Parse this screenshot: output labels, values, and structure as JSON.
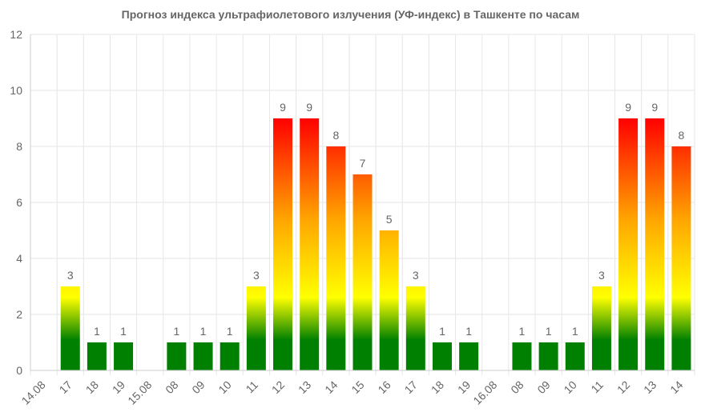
{
  "chart_data": {
    "type": "bar",
    "title": "Прогноз индекса ультрафиолетового излучения (УФ-индекс) в Ташкенте по часам",
    "xlabel": "",
    "ylabel": "",
    "ylim": [
      0,
      12
    ],
    "yticks": [
      0,
      2,
      4,
      6,
      8,
      10,
      12
    ],
    "grid": true,
    "legend": "none",
    "categories": [
      "14.08",
      "17",
      "18",
      "19",
      "15.08",
      "08",
      "09",
      "10",
      "11",
      "12",
      "13",
      "14",
      "15",
      "16",
      "17",
      "18",
      "19",
      "16.08",
      "08",
      "09",
      "10",
      "11",
      "12",
      "13",
      "14"
    ],
    "values": [
      null,
      3,
      1,
      1,
      null,
      1,
      1,
      1,
      3,
      9,
      9,
      8,
      7,
      5,
      3,
      1,
      1,
      null,
      1,
      1,
      1,
      3,
      9,
      9,
      8
    ],
    "data_labels": [
      "",
      "3",
      "1",
      "1",
      "",
      "1",
      "1",
      "1",
      "3",
      "9",
      "9",
      "8",
      "7",
      "5",
      "3",
      "1",
      "1",
      "",
      "1",
      "1",
      "1",
      "3",
      "9",
      "9",
      "8"
    ],
    "colors": {
      "scale": [
        "#008000",
        "#008000",
        "#ffff00",
        "#ffa500",
        "#ff0000"
      ],
      "grid": "#e6e6e6",
      "axis": "#cccccc",
      "text": "#666666"
    }
  }
}
